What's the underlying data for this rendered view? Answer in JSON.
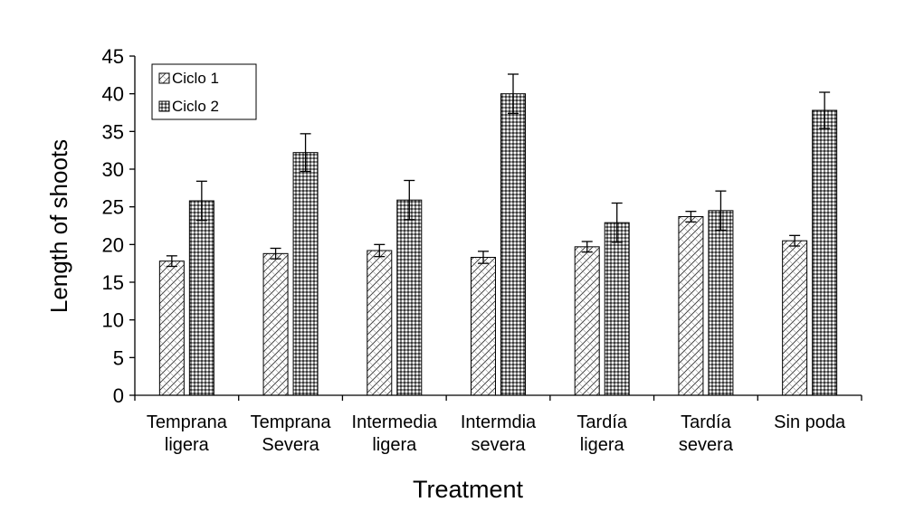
{
  "chart_data": {
    "type": "bar",
    "title": "",
    "xlabel": "Treatment",
    "ylabel": "Length of shoots",
    "ylim": [
      0,
      45
    ],
    "yticks": [
      0,
      5,
      10,
      15,
      20,
      25,
      30,
      35,
      40,
      45
    ],
    "ytick_labels": [
      "0",
      "5",
      "10",
      "15",
      "20",
      "25",
      "30",
      "35",
      "40",
      "45"
    ],
    "grid": false,
    "legend_position": "top-left",
    "categories": [
      [
        "Temprana",
        "ligera"
      ],
      [
        "Temprana",
        "Severa"
      ],
      [
        "Intermedia",
        "ligera"
      ],
      [
        "Intermdia",
        "severa"
      ],
      [
        "Tardía",
        "ligera"
      ],
      [
        "Tardía",
        "severa"
      ],
      [
        "Sin poda"
      ]
    ],
    "series": [
      {
        "name": "Ciclo 1",
        "pattern": "diagonal-crosshatch",
        "values": [
          17.8,
          18.8,
          19.2,
          18.3,
          19.7,
          23.7,
          20.5
        ],
        "errors": [
          0.7,
          0.7,
          0.8,
          0.8,
          0.7,
          0.7,
          0.7
        ]
      },
      {
        "name": "Ciclo 2",
        "pattern": "dense-dots",
        "values": [
          25.8,
          32.2,
          25.9,
          40.0,
          22.9,
          24.5,
          37.8
        ],
        "errors": [
          2.6,
          2.5,
          2.6,
          2.6,
          2.6,
          2.6,
          2.4
        ]
      }
    ],
    "colors": {
      "axis": "#000000",
      "bar_stroke": "#000000",
      "background": "#ffffff"
    }
  }
}
